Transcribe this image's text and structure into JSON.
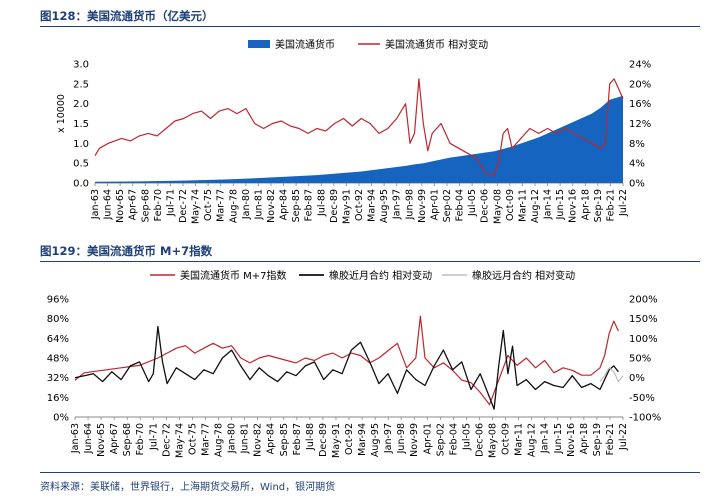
{
  "figures": {
    "fig128_title": "图128：美国流通货币（亿美元）",
    "fig129_title": "图129：美国流通货币 M+7指数",
    "source": "资料来源：美联储，世界银行，上海期货交易所，Wind，银河期货"
  },
  "colors": {
    "title_blue": "#1f3f7a",
    "area_blue": "#1565c0",
    "red": "#c0262c",
    "black": "#111111",
    "gray": "#bdbdbd"
  },
  "chart_data": [
    {
      "type": "area",
      "title": "图128：美国流通货币（亿美元）",
      "scale_label": "x 10000",
      "legend": [
        "美国流通货币",
        "美国流通货币 相对变动"
      ],
      "legend_placement": "top",
      "x_ticks": [
        "Jan-63",
        "Jun-64",
        "Nov-65",
        "Apr-67",
        "Sep-68",
        "Feb-70",
        "Jul-71",
        "Dec-72",
        "May-74",
        "Oct-75",
        "Mar-77",
        "Aug-78",
        "Jan-80",
        "Jun-81",
        "Nov-82",
        "Apr-84",
        "Sep-85",
        "Feb-87",
        "Jul-88",
        "Dec-89",
        "May-91",
        "Oct-92",
        "Mar-94",
        "Aug-95",
        "Jan-97",
        "Jun-98",
        "Nov-99",
        "Apr-01",
        "Sep-02",
        "Feb-04",
        "Jul-05",
        "Dec-06",
        "May-08",
        "Oct-09",
        "Mar-11",
        "Aug-12",
        "Jan-14",
        "Jun-15",
        "Nov-16",
        "Apr-18",
        "Sep-19",
        "Feb-21",
        "Jul-22"
      ],
      "y_left": {
        "min": 0,
        "max": 3.0,
        "ticks": [
          "0.0",
          "0.5",
          "1.0",
          "1.5",
          "2.0",
          "2.5",
          "3.0"
        ]
      },
      "y_right": {
        "min": 0,
        "max": 24,
        "ticks": [
          "0%",
          "4%",
          "8%",
          "12%",
          "16%",
          "20%",
          "24%"
        ]
      },
      "series": [
        {
          "name": "美国流通货币",
          "type": "area",
          "axis": "left",
          "x": [
            1963,
            1968,
            1973,
            1978,
            1983,
            1988,
            1993,
            1998,
            1999,
            2000,
            2003,
            2008,
            2010,
            2013,
            2016,
            2019,
            2020,
            2021,
            2022.5
          ],
          "y": [
            0.03,
            0.04,
            0.06,
            0.09,
            0.14,
            0.2,
            0.29,
            0.43,
            0.47,
            0.5,
            0.64,
            0.8,
            0.92,
            1.15,
            1.45,
            1.75,
            1.9,
            2.1,
            2.2
          ]
        },
        {
          "name": "美国流通货币 相对变动",
          "type": "line",
          "axis": "right",
          "x": [
            1963,
            1963.5,
            1964.5,
            1966,
            1967,
            1968,
            1969,
            1970,
            1971,
            1972,
            1973,
            1974,
            1975,
            1976,
            1977,
            1978,
            1979,
            1980,
            1981,
            1982,
            1983,
            1984,
            1985,
            1986,
            1987,
            1988,
            1989,
            1990,
            1991,
            1992,
            1993,
            1994,
            1995,
            1996,
            1997,
            1998,
            1998.5,
            1999,
            1999.5,
            2000,
            2000.5,
            2001,
            2002,
            2003,
            2004,
            2005,
            2006,
            2006.5,
            2007,
            2008,
            2008.5,
            2009,
            2009.5,
            2010,
            2011,
            2012,
            2013,
            2014,
            2015,
            2016,
            2017,
            2018,
            2019,
            2020,
            2020.5,
            2021,
            2021.5,
            2022,
            2022.5
          ],
          "y": [
            5.5,
            7,
            8,
            9,
            8.5,
            9.5,
            10,
            9.5,
            11,
            12.5,
            13,
            14,
            14.5,
            13,
            14.5,
            15,
            14,
            15,
            12,
            11,
            12,
            12.5,
            11.5,
            11,
            10,
            11,
            10.5,
            12,
            13,
            11.5,
            13,
            12,
            10,
            11,
            13,
            16,
            8,
            10,
            21,
            12,
            6.5,
            10,
            12,
            8,
            7,
            6,
            5,
            3.5,
            2,
            1.5,
            4.5,
            10,
            11,
            7,
            9,
            11,
            10,
            11,
            10,
            11,
            10,
            9,
            8,
            7,
            8,
            20,
            21,
            19,
            17
          ]
        }
      ]
    },
    {
      "type": "line",
      "title": "图129：美国流通货币 M+7指数",
      "legend": [
        "美国流通货币 M+7指数",
        "橡胶近月合约 相对变动",
        "橡胶远月合约 相对变动"
      ],
      "legend_placement": "top",
      "x_ticks": [
        "Jan-63",
        "Jun-64",
        "Nov-65",
        "Apr-67",
        "Sep-68",
        "Feb-70",
        "Jul-71",
        "Dec-72",
        "May-74",
        "Oct-75",
        "Mar-77",
        "Aug-78",
        "Jan-80",
        "Jun-81",
        "Nov-82",
        "Apr-84",
        "Sep-85",
        "Feb-87",
        "Jul-88",
        "Dec-89",
        "May-91",
        "Oct-92",
        "Mar-94",
        "Aug-95",
        "Jan-97",
        "Jun-98",
        "Nov-99",
        "Apr-01",
        "Sep-02",
        "Feb-04",
        "Jul-05",
        "Dec-06",
        "May-08",
        "Oct-09",
        "Mar-11",
        "Aug-12",
        "Jan-14",
        "Jun-15",
        "Nov-16",
        "Apr-18",
        "Sep-19",
        "Feb-21",
        "Jul-22"
      ],
      "y_left": {
        "min": 0,
        "max": 96,
        "ticks": [
          "0%",
          "16%",
          "32%",
          "48%",
          "64%",
          "80%",
          "96%"
        ]
      },
      "y_right": {
        "min": -100,
        "max": 200,
        "ticks": [
          "-100%",
          "-50%",
          "0%",
          "50%",
          "100%",
          "150%",
          "200%"
        ]
      },
      "series": [
        {
          "name": "美国流通货币 M+7指数",
          "axis": "left",
          "x": [
            1963,
            1964,
            1966,
            1968,
            1970,
            1972,
            1973,
            1974,
            1975,
            1976,
            1977,
            1978,
            1979,
            1980,
            1981,
            1982,
            1983,
            1984,
            1985,
            1986,
            1987,
            1988,
            1989,
            1990,
            1991,
            1992,
            1993,
            1994,
            1995,
            1996,
            1997,
            1998,
            1999,
            2000,
            2000.5,
            2001,
            2002,
            2003,
            2004,
            2005,
            2006,
            2007,
            2008,
            2009,
            2010,
            2011,
            2012,
            2013,
            2014,
            2015,
            2016,
            2017,
            2018,
            2019,
            2020,
            2020.5,
            2021,
            2021.5,
            2022
          ],
          "y": [
            30,
            36,
            38,
            40,
            42,
            48,
            52,
            56,
            58,
            52,
            56,
            60,
            56,
            58,
            48,
            44,
            48,
            50,
            48,
            46,
            44,
            48,
            46,
            50,
            52,
            48,
            52,
            50,
            44,
            48,
            54,
            60,
            40,
            48,
            82,
            48,
            40,
            44,
            38,
            30,
            28,
            20,
            10,
            30,
            50,
            42,
            48,
            40,
            46,
            36,
            40,
            38,
            34,
            34,
            40,
            50,
            68,
            78,
            70
          ]
        },
        {
          "name": "橡胶近月合约 相对变动",
          "axis": "right",
          "x": [
            1963,
            1964,
            1965,
            1966,
            1967,
            1968,
            1969,
            1970,
            1971,
            1971.5,
            1972,
            1972.5,
            1973,
            1974,
            1975,
            1976,
            1977,
            1978,
            1979,
            1980,
            1981,
            1982,
            1983,
            1984,
            1985,
            1986,
            1987,
            1988,
            1989,
            1990,
            1991,
            1992,
            1993,
            1994,
            1995,
            1996,
            1997,
            1998,
            1999,
            2000,
            2001,
            2002,
            2003,
            2004,
            2005,
            2006,
            2007,
            2008,
            2008.5,
            2009,
            2009.5,
            2010,
            2010.5,
            2011,
            2012,
            2013,
            2014,
            2015,
            2016,
            2017,
            2018,
            2019,
            2020,
            2021,
            2021.5,
            2022
          ],
          "y": [
            0,
            5,
            10,
            -10,
            15,
            -5,
            30,
            40,
            -10,
            10,
            130,
            40,
            -15,
            25,
            10,
            -5,
            20,
            10,
            50,
            70,
            30,
            -5,
            25,
            5,
            -10,
            15,
            5,
            30,
            40,
            -5,
            20,
            10,
            70,
            90,
            40,
            -15,
            10,
            -40,
            20,
            -5,
            -20,
            30,
            70,
            20,
            40,
            -30,
            10,
            -50,
            -80,
            30,
            120,
            10,
            80,
            -20,
            -5,
            -30,
            -10,
            -20,
            -25,
            5,
            -25,
            -15,
            -30,
            20,
            30,
            15
          ]
        },
        {
          "name": "橡胶远月合约 相对变动",
          "axis": "right",
          "x": [
            2020,
            2020.5,
            2021,
            2021.5,
            2022,
            2022.5
          ],
          "y": [
            -10,
            5,
            25,
            15,
            -10,
            5
          ]
        }
      ]
    }
  ]
}
